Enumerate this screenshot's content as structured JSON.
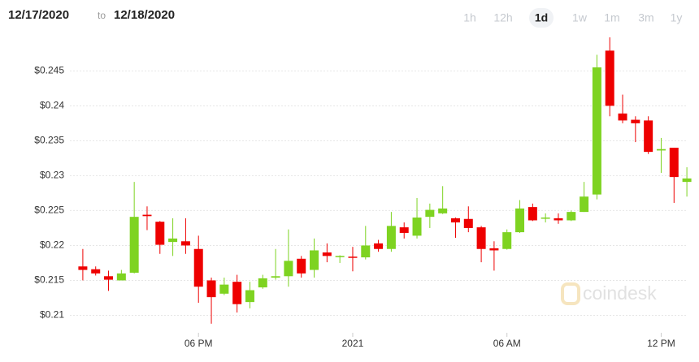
{
  "chart_data": {
    "type": "candlestick",
    "date_from": "12/17/2020",
    "date_sep": "to",
    "date_to": "12/18/2020",
    "ranges": [
      "1h",
      "12h",
      "1d",
      "1w",
      "1m",
      "3m",
      "1y"
    ],
    "active_range": "1d",
    "watermark": "coindesk",
    "up_color": "#7ed321",
    "down_color": "#ee0000",
    "grid": true,
    "categories": [
      null,
      null,
      null,
      null,
      null,
      null,
      null,
      null,
      null,
      "06 PM",
      null,
      null,
      null,
      null,
      null,
      null,
      null,
      null,
      null,
      null,
      null,
      "2021",
      null,
      null,
      null,
      null,
      null,
      null,
      null,
      null,
      null,
      null,
      null,
      "06 AM",
      null,
      null,
      null,
      null,
      null,
      null,
      null,
      null,
      null,
      null,
      null,
      "12 PM",
      null,
      null
    ],
    "open": [
      0.217,
      0.2166,
      0.2156,
      0.215,
      0.2161,
      0.2244,
      0.2234,
      0.2205,
      0.2206,
      0.2195,
      0.215,
      0.2131,
      0.2148,
      0.2119,
      0.214,
      0.2154,
      0.2156,
      0.2181,
      0.2165,
      0.219,
      0.2184,
      0.2184,
      0.2183,
      0.2203,
      0.2195,
      0.2226,
      0.2214,
      0.2241,
      0.2246,
      0.2239,
      0.2238,
      0.2226,
      0.2196,
      0.2195,
      0.2219,
      0.2255,
      0.2239,
      0.2239,
      0.2236,
      0.2248,
      0.2273,
      0.2479,
      0.2389,
      0.238,
      0.2379,
      0.2336,
      0.234,
      0.2291
    ],
    "high": [
      0.2195,
      0.217,
      0.2164,
      0.2165,
      0.2291,
      0.2256,
      0.2235,
      0.2239,
      0.2239,
      0.2214,
      0.2154,
      0.2154,
      0.2158,
      0.2148,
      0.2158,
      0.2195,
      0.2223,
      0.2185,
      0.221,
      0.2203,
      0.2186,
      0.2198,
      0.2228,
      0.2208,
      0.2248,
      0.2233,
      0.2268,
      0.226,
      0.2285,
      0.224,
      0.2256,
      0.2228,
      0.2206,
      0.2223,
      0.2265,
      0.226,
      0.2246,
      0.2246,
      0.225,
      0.2291,
      0.2473,
      0.2498,
      0.2416,
      0.2385,
      0.2385,
      0.2354,
      0.234,
      0.2312
    ],
    "low": [
      0.215,
      0.2157,
      0.2135,
      0.215,
      0.216,
      0.2222,
      0.2188,
      0.2185,
      0.2188,
      0.2118,
      0.2088,
      0.2129,
      0.2104,
      0.211,
      0.2138,
      0.2151,
      0.2141,
      0.2154,
      0.2154,
      0.2176,
      0.2175,
      0.2163,
      0.218,
      0.2191,
      0.2191,
      0.221,
      0.221,
      0.2225,
      0.2245,
      0.2211,
      0.2219,
      0.2176,
      0.2164,
      0.2194,
      0.2218,
      0.2235,
      0.2233,
      0.2231,
      0.2235,
      0.2248,
      0.2266,
      0.2385,
      0.2375,
      0.2348,
      0.2331,
      0.2304,
      0.2261,
      0.227
    ],
    "close": [
      0.2165,
      0.216,
      0.2151,
      0.216,
      0.2241,
      0.2242,
      0.2201,
      0.221,
      0.22,
      0.2141,
      0.2126,
      0.2144,
      0.2116,
      0.2136,
      0.2153,
      0.2156,
      0.2178,
      0.216,
      0.2193,
      0.2185,
      0.2185,
      0.2183,
      0.22,
      0.2195,
      0.2228,
      0.2218,
      0.224,
      0.2251,
      0.2253,
      0.2233,
      0.2225,
      0.2195,
      0.2193,
      0.2219,
      0.2253,
      0.2236,
      0.224,
      0.2236,
      0.2248,
      0.227,
      0.2455,
      0.24,
      0.2379,
      0.2375,
      0.2334,
      0.2338,
      0.2298,
      0.2296
    ],
    "ylim": [
      0.2075,
      0.2505
    ],
    "yticks": [
      {
        "value": 0.21,
        "label": "$0.21"
      },
      {
        "value": 0.215,
        "label": "$0.215"
      },
      {
        "value": 0.22,
        "label": "$0.22"
      },
      {
        "value": 0.225,
        "label": "$0.225"
      },
      {
        "value": 0.23,
        "label": "$0.23"
      },
      {
        "value": 0.235,
        "label": "$0.235"
      },
      {
        "value": 0.24,
        "label": "$0.24"
      },
      {
        "value": 0.245,
        "label": "$0.245"
      }
    ]
  }
}
